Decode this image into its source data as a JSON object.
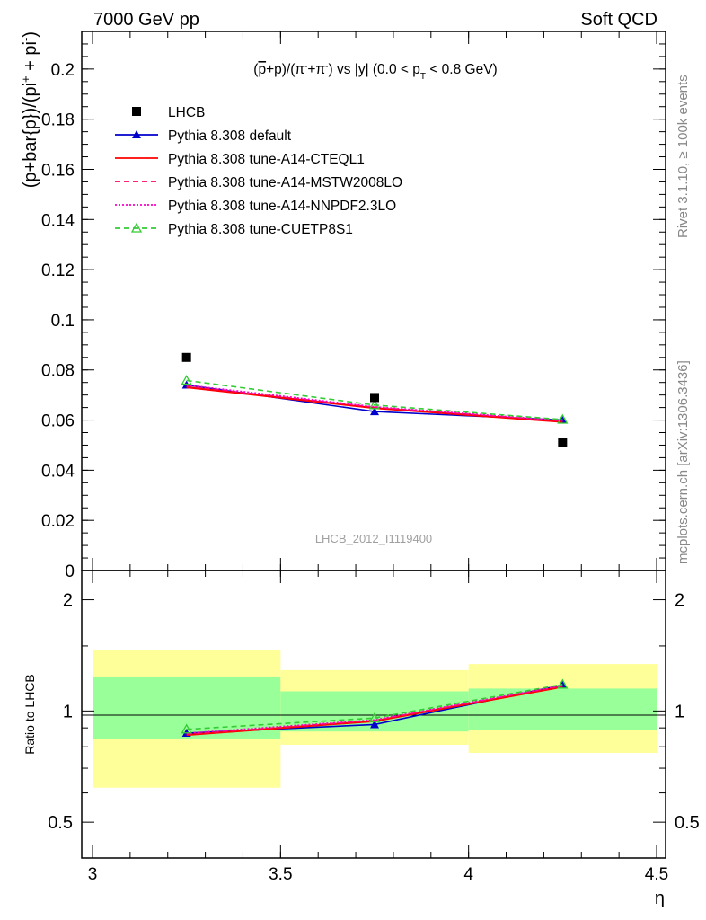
{
  "header": {
    "energy_label": "7000 GeV pp",
    "process_label": "Soft QCD"
  },
  "side_labels": {
    "rivet": "Rivet 3.1.10, ≥ 100k events",
    "mcplots": "mcplots.cern.ch [arXiv:1306.3436]"
  },
  "chart_data": {
    "type": "line",
    "title": "(p̄+p)/(π⁻+π⁻) vs |y| (0.0 < pT < 0.8 GeV)",
    "title_parts": {
      "a": "(",
      "pbar": "p",
      "b": "+p)/(π",
      "sup1": "-",
      "c": "+π",
      "sup2": "-",
      "d": ") vs |y| (0.0 < p",
      "sub": "T",
      "e": " < 0.8 GeV)"
    },
    "ylabel": "(p+bar{p})/(pi⁺ + pi⁻)",
    "ylabel_parts": {
      "main": "(p+bar{p})/(pi",
      "sup1": "+",
      "mid": " + pi",
      "sup2": "-",
      "end": ")"
    },
    "xlabel": "η",
    "ratio_ylabel": "Ratio to LHCB",
    "watermark": "LHCB_2012_I1119400",
    "xlim": [
      3,
      4.5
    ],
    "ylim": [
      0,
      0.215
    ],
    "ratio_ylim": [
      0.4,
      2.4
    ],
    "log_ratio_axis": true,
    "x_ticks": [
      "3",
      "3.5",
      "4",
      "4.5"
    ],
    "y_ticks": [
      "0",
      "0.02",
      "0.04",
      "0.06",
      "0.08",
      "0.1",
      "0.12",
      "0.14",
      "0.16",
      "0.18",
      "0.2"
    ],
    "ratio_ticks": [
      "0.5",
      "1",
      "2"
    ],
    "legend_position": "top-left",
    "x": [
      3.25,
      3.75,
      4.25
    ],
    "bins": [
      [
        3.0,
        3.5
      ],
      [
        3.5,
        4.0
      ],
      [
        4.0,
        4.5
      ]
    ],
    "data": {
      "name": "LHCB",
      "values": [
        0.085,
        0.069,
        0.051
      ],
      "ratio_band_inner": [
        [
          0.84,
          1.24
        ],
        [
          0.88,
          1.13
        ],
        [
          0.89,
          1.15
        ]
      ],
      "ratio_band_outer": [
        [
          0.62,
          1.46
        ],
        [
          0.81,
          1.29
        ],
        [
          0.77,
          1.34
        ]
      ]
    },
    "series": [
      {
        "name": "Pythia 8.308 default",
        "color": "#0000cc",
        "style": "solid",
        "marker": "triangle-filled",
        "values": [
          0.074,
          0.0634,
          0.06
        ],
        "ratio": [
          0.871,
          0.919,
          1.176
        ]
      },
      {
        "name": "Pythia 8.308 tune-A14-CTEQL1",
        "color": "#ff0000",
        "style": "solid",
        "marker": "none",
        "values": [
          0.0731,
          0.0648,
          0.0593
        ],
        "ratio": [
          0.861,
          0.939,
          1.163
        ]
      },
      {
        "name": "Pythia 8.308 tune-A14-MSTW2008LO",
        "color": "#ff0066",
        "style": "dashed",
        "marker": "none",
        "values": [
          0.0735,
          0.0651,
          0.0596
        ],
        "ratio": [
          0.865,
          0.943,
          1.169
        ]
      },
      {
        "name": "Pythia 8.308 tune-A14-NNPDF2.3LO",
        "color": "#ff00cc",
        "style": "dotted",
        "marker": "none",
        "values": [
          0.074,
          0.0653,
          0.0598
        ],
        "ratio": [
          0.871,
          0.946,
          1.173
        ]
      },
      {
        "name": "Pythia 8.308 tune-CUETP8S1",
        "color": "#33cc33",
        "style": "dashed",
        "marker": "triangle-open",
        "values": [
          0.0758,
          0.066,
          0.0602
        ],
        "ratio": [
          0.892,
          0.957,
          1.18
        ]
      }
    ],
    "colors": {
      "band_inner": "#99ff99",
      "band_outer": "#ffff99",
      "data_marker": "#000000",
      "side_text": "#888888",
      "watermark": "#a0a0a0"
    }
  }
}
